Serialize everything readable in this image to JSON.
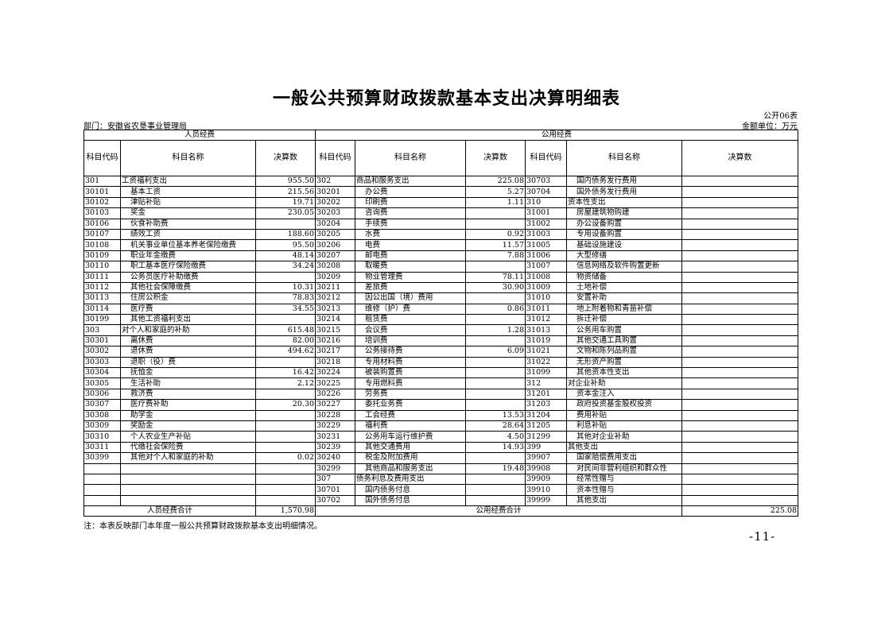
{
  "title": "一般公共预算财政拨款基本支出决算明细表",
  "table_no": "公开06表",
  "department": "部门：安徽省农垦事业管理局",
  "unit": "金额单位：万元",
  "headers": {
    "personnel": "人员经费",
    "public": "公用经费",
    "code": "科目代码",
    "name": "科目名称",
    "amount": "决算数"
  },
  "personnel_rows": [
    [
      "301",
      "工资福利支出",
      "955.50"
    ],
    [
      "30101",
      "基本工资",
      "215.56"
    ],
    [
      "30102",
      "津贴补贴",
      "19.71"
    ],
    [
      "30103",
      "奖金",
      "230.05"
    ],
    [
      "30106",
      "伙食补助费",
      ""
    ],
    [
      "30107",
      "绩效工资",
      "188.60"
    ],
    [
      "30108",
      "机关事业单位基本养老保险缴费",
      "95.50"
    ],
    [
      "30109",
      "职业年金缴费",
      "48.14"
    ],
    [
      "30110",
      "职工基本医疗保险缴费",
      "34.24"
    ],
    [
      "30111",
      "公务员医疗补助缴费",
      ""
    ],
    [
      "30112",
      "其他社会保障缴费",
      "10.31"
    ],
    [
      "30113",
      "住房公积金",
      "78.83"
    ],
    [
      "30114",
      "医疗费",
      "34.55"
    ],
    [
      "30199",
      "其他工资福利支出",
      ""
    ],
    [
      "303",
      "对个人和家庭的补助",
      "615.48"
    ],
    [
      "30301",
      "离休费",
      "82.00"
    ],
    [
      "30302",
      "退休费",
      "494.62"
    ],
    [
      "30303",
      "退职（役）费",
      ""
    ],
    [
      "30304",
      "抚恤金",
      "16.42"
    ],
    [
      "30305",
      "生活补助",
      "2.12"
    ],
    [
      "30306",
      "救济费",
      ""
    ],
    [
      "30307",
      "医疗费补助",
      "20.30"
    ],
    [
      "30308",
      "助学金",
      ""
    ],
    [
      "30309",
      "奖励金",
      ""
    ],
    [
      "30310",
      "个人农业生产补贴",
      ""
    ],
    [
      "30311",
      "代缴社会保险费",
      ""
    ],
    [
      "30399",
      "其他对个人和家庭的补助",
      "0.02"
    ],
    [
      "",
      "",
      ""
    ],
    [
      "",
      "",
      ""
    ],
    [
      "",
      "",
      ""
    ],
    [
      "",
      "",
      ""
    ]
  ],
  "public_rows_a": [
    [
      "302",
      "商品和服务支出",
      "225.08"
    ],
    [
      "30201",
      "办公费",
      "5.27"
    ],
    [
      "30202",
      "印刷费",
      "1.11"
    ],
    [
      "30203",
      "咨询费",
      ""
    ],
    [
      "30204",
      "手续费",
      ""
    ],
    [
      "30205",
      "水费",
      "0.92"
    ],
    [
      "30206",
      "电费",
      "11.57"
    ],
    [
      "30207",
      "邮电费",
      "7.88"
    ],
    [
      "30208",
      "取暖费",
      ""
    ],
    [
      "30209",
      "物业管理费",
      "78.11"
    ],
    [
      "30211",
      "差旅费",
      "30.90"
    ],
    [
      "30212",
      "因公出国（境）费用",
      ""
    ],
    [
      "30213",
      "维修（护）费",
      "0.86"
    ],
    [
      "30214",
      "租赁费",
      ""
    ],
    [
      "30215",
      "会议费",
      "1.28"
    ],
    [
      "30216",
      "培训费",
      ""
    ],
    [
      "30217",
      "公务接待费",
      "6.09"
    ],
    [
      "30218",
      "专用材料费",
      ""
    ],
    [
      "30224",
      "被装购置费",
      ""
    ],
    [
      "30225",
      "专用燃料费",
      ""
    ],
    [
      "30226",
      "劳务费",
      ""
    ],
    [
      "30227",
      "委托业务费",
      ""
    ],
    [
      "30228",
      "工会经费",
      "13.53"
    ],
    [
      "30229",
      "福利费",
      "28.64"
    ],
    [
      "30231",
      "公务用车运行维护费",
      "4.50"
    ],
    [
      "30239",
      "其他交通费用",
      "14.93"
    ],
    [
      "30240",
      "税金及附加费用",
      ""
    ],
    [
      "30299",
      "其他商品和服务支出",
      "19.48"
    ],
    [
      "307",
      "债务利息及费用支出",
      ""
    ],
    [
      "30701",
      "国内债务付息",
      ""
    ],
    [
      "30702",
      "国外债务付息",
      ""
    ]
  ],
  "public_rows_b": [
    [
      "30703",
      "国内债务发行费用",
      ""
    ],
    [
      "30704",
      "国外债务发行费用",
      ""
    ],
    [
      "310",
      "资本性支出",
      ""
    ],
    [
      "31001",
      "房屋建筑物购建",
      ""
    ],
    [
      "31002",
      "办公设备购置",
      ""
    ],
    [
      "31003",
      "专用设备购置",
      ""
    ],
    [
      "31005",
      "基础设施建设",
      ""
    ],
    [
      "31006",
      "大型修缮",
      ""
    ],
    [
      "31007",
      "信息网络及软件购置更新",
      ""
    ],
    [
      "31008",
      "物资储备",
      ""
    ],
    [
      "31009",
      "土地补偿",
      ""
    ],
    [
      "31010",
      "安置补助",
      ""
    ],
    [
      "31011",
      "地上附着物和青苗补偿",
      ""
    ],
    [
      "31012",
      "拆迁补偿",
      ""
    ],
    [
      "31013",
      "公务用车购置",
      ""
    ],
    [
      "31019",
      "其他交通工具购置",
      ""
    ],
    [
      "31021",
      "文物和陈列品购置",
      ""
    ],
    [
      "31022",
      "无形资产购置",
      ""
    ],
    [
      "31099",
      "其他资本性支出",
      ""
    ],
    [
      "312",
      "对企业补助",
      ""
    ],
    [
      "31201",
      "资本金注入",
      ""
    ],
    [
      "31203",
      "政府投资基金股权投资",
      ""
    ],
    [
      "31204",
      "费用补贴",
      ""
    ],
    [
      "31205",
      "利息补贴",
      ""
    ],
    [
      "31299",
      "其他对企业补助",
      ""
    ],
    [
      "399",
      "其他支出",
      ""
    ],
    [
      "39907",
      "国家赔偿费用支出",
      ""
    ],
    [
      "39908",
      "对民间非营利组织和群众性",
      ""
    ],
    [
      "39909",
      "经常性赠与",
      ""
    ],
    [
      "39910",
      "资本性赠与",
      ""
    ],
    [
      "39999",
      "其他支出",
      ""
    ]
  ],
  "totals": {
    "personnel_label": "人员经费合计",
    "personnel_value": "1,570.98",
    "public_label": "公用经费合计",
    "public_value": "225.08"
  },
  "note": "注：本表反映部门本年度一般公共预算财政拨款基本支出明细情况。",
  "page_number": "-11-"
}
